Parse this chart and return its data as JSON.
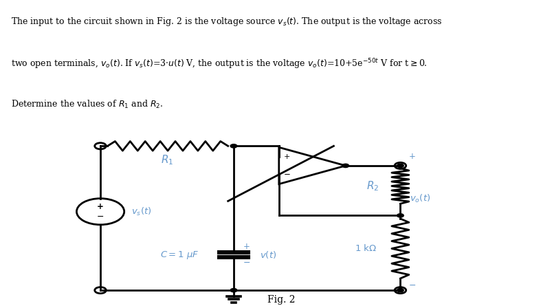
{
  "bg_color": "#ffffff",
  "line_color": "#000000",
  "label_color": "#6699cc",
  "text_color": "#000000",
  "fig_label": "Fig. 2",
  "lw": 2.0
}
